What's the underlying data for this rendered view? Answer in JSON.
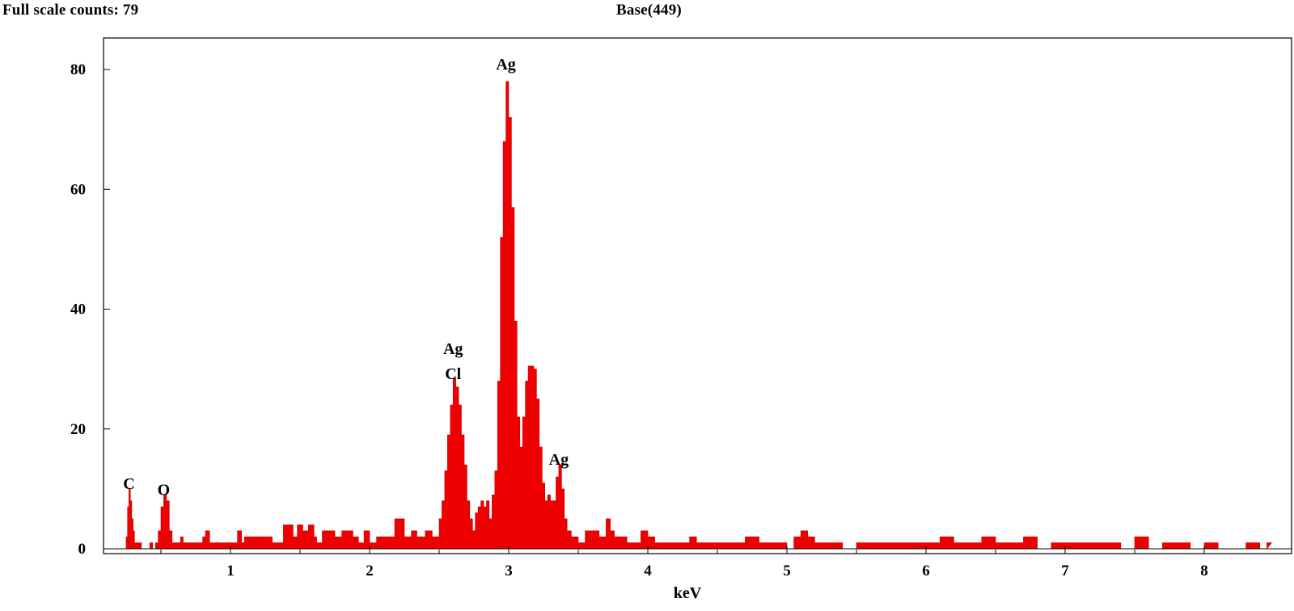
{
  "header": {
    "full_scale": "Full scale counts: 79",
    "base": "Base(449)"
  },
  "chart_data": {
    "type": "area",
    "title": "",
    "xlabel": "keV",
    "ylabel": "",
    "xlim": [
      0.0,
      8.45
    ],
    "ylim": [
      0,
      86
    ],
    "x_ticks": [
      1,
      2,
      3,
      4,
      5,
      6,
      7,
      8
    ],
    "y_ticks": [
      0,
      20,
      40,
      60,
      80
    ],
    "fill_color": "#ee0000",
    "grid": false,
    "peak_labels": [
      {
        "text": "C",
        "x": 0.27,
        "y": 10
      },
      {
        "text": "O",
        "x": 0.52,
        "y": 9
      },
      {
        "text": "Ag",
        "x": 2.6,
        "y": 32.5
      },
      {
        "text": "Cl",
        "x": 2.6,
        "y": 28.3
      },
      {
        "text": "Ag",
        "x": 2.98,
        "y": 80
      },
      {
        "text": "Ag",
        "x": 3.36,
        "y": 14
      }
    ],
    "series": [
      {
        "values": [
          [
            0.24,
            0
          ],
          [
            0.25,
            2
          ],
          [
            0.26,
            7
          ],
          [
            0.27,
            10
          ],
          [
            0.28,
            8
          ],
          [
            0.29,
            5
          ],
          [
            0.3,
            3
          ],
          [
            0.31,
            1
          ],
          [
            0.34,
            1
          ],
          [
            0.36,
            0
          ],
          [
            0.38,
            0
          ],
          [
            0.4,
            0
          ],
          [
            0.42,
            1
          ],
          [
            0.44,
            0
          ],
          [
            0.46,
            1
          ],
          [
            0.48,
            3
          ],
          [
            0.5,
            7
          ],
          [
            0.52,
            9
          ],
          [
            0.54,
            8
          ],
          [
            0.56,
            3
          ],
          [
            0.58,
            1
          ],
          [
            0.62,
            1
          ],
          [
            0.64,
            2
          ],
          [
            0.66,
            1
          ],
          [
            0.7,
            1
          ],
          [
            0.75,
            1
          ],
          [
            0.8,
            2
          ],
          [
            0.82,
            3
          ],
          [
            0.85,
            1
          ],
          [
            0.9,
            1
          ],
          [
            0.95,
            1
          ],
          [
            1.0,
            1
          ],
          [
            1.05,
            3
          ],
          [
            1.08,
            1
          ],
          [
            1.1,
            2
          ],
          [
            1.15,
            2
          ],
          [
            1.2,
            2
          ],
          [
            1.25,
            2
          ],
          [
            1.3,
            1
          ],
          [
            1.35,
            1
          ],
          [
            1.38,
            4
          ],
          [
            1.45,
            2
          ],
          [
            1.48,
            4
          ],
          [
            1.52,
            3
          ],
          [
            1.56,
            4
          ],
          [
            1.6,
            2
          ],
          [
            1.62,
            1
          ],
          [
            1.66,
            3
          ],
          [
            1.7,
            3
          ],
          [
            1.75,
            2
          ],
          [
            1.8,
            3
          ],
          [
            1.85,
            3
          ],
          [
            1.88,
            2
          ],
          [
            1.92,
            1
          ],
          [
            1.96,
            3
          ],
          [
            2.0,
            1
          ],
          [
            2.05,
            2
          ],
          [
            2.1,
            2
          ],
          [
            2.15,
            2
          ],
          [
            2.18,
            5
          ],
          [
            2.22,
            5
          ],
          [
            2.25,
            2
          ],
          [
            2.28,
            2
          ],
          [
            2.3,
            3
          ],
          [
            2.34,
            2
          ],
          [
            2.38,
            2
          ],
          [
            2.4,
            3
          ],
          [
            2.45,
            2
          ],
          [
            2.48,
            2
          ],
          [
            2.5,
            5
          ],
          [
            2.52,
            8
          ],
          [
            2.54,
            13
          ],
          [
            2.56,
            19
          ],
          [
            2.58,
            24
          ],
          [
            2.6,
            28.5
          ],
          [
            2.62,
            27
          ],
          [
            2.64,
            24
          ],
          [
            2.66,
            19
          ],
          [
            2.68,
            14
          ],
          [
            2.7,
            8
          ],
          [
            2.72,
            5
          ],
          [
            2.74,
            3
          ],
          [
            2.76,
            6
          ],
          [
            2.78,
            7
          ],
          [
            2.8,
            8
          ],
          [
            2.82,
            7
          ],
          [
            2.84,
            8
          ],
          [
            2.86,
            5
          ],
          [
            2.88,
            9
          ],
          [
            2.9,
            13
          ],
          [
            2.92,
            28
          ],
          [
            2.94,
            52
          ],
          [
            2.96,
            68
          ],
          [
            2.98,
            78
          ],
          [
            3.0,
            72
          ],
          [
            3.02,
            57
          ],
          [
            3.04,
            38
          ],
          [
            3.06,
            22
          ],
          [
            3.08,
            17
          ],
          [
            3.1,
            22
          ],
          [
            3.12,
            28
          ],
          [
            3.14,
            30.5
          ],
          [
            3.16,
            30.5
          ],
          [
            3.18,
            30
          ],
          [
            3.2,
            25
          ],
          [
            3.22,
            17
          ],
          [
            3.24,
            11
          ],
          [
            3.26,
            8
          ],
          [
            3.28,
            9
          ],
          [
            3.3,
            8
          ],
          [
            3.32,
            8
          ],
          [
            3.34,
            12
          ],
          [
            3.36,
            14
          ],
          [
            3.38,
            10
          ],
          [
            3.4,
            5
          ],
          [
            3.42,
            3
          ],
          [
            3.45,
            2
          ],
          [
            3.5,
            1
          ],
          [
            3.55,
            3
          ],
          [
            3.6,
            3
          ],
          [
            3.65,
            2
          ],
          [
            3.7,
            5
          ],
          [
            3.73,
            3
          ],
          [
            3.76,
            2
          ],
          [
            3.8,
            2
          ],
          [
            3.85,
            1
          ],
          [
            3.9,
            1
          ],
          [
            3.95,
            3
          ],
          [
            4.0,
            2
          ],
          [
            4.05,
            1
          ],
          [
            4.1,
            1
          ],
          [
            4.2,
            1
          ],
          [
            4.3,
            2
          ],
          [
            4.35,
            1
          ],
          [
            4.4,
            1
          ],
          [
            4.5,
            1
          ],
          [
            4.6,
            1
          ],
          [
            4.7,
            2
          ],
          [
            4.8,
            1
          ],
          [
            4.9,
            1
          ],
          [
            5.0,
            0
          ],
          [
            5.05,
            2
          ],
          [
            5.1,
            3
          ],
          [
            5.15,
            2
          ],
          [
            5.2,
            1
          ],
          [
            5.3,
            1
          ],
          [
            5.4,
            0
          ],
          [
            5.5,
            1
          ],
          [
            5.6,
            1
          ],
          [
            5.7,
            1
          ],
          [
            5.8,
            1
          ],
          [
            5.9,
            1
          ],
          [
            6.0,
            1
          ],
          [
            6.1,
            2
          ],
          [
            6.2,
            1
          ],
          [
            6.3,
            1
          ],
          [
            6.4,
            2
          ],
          [
            6.5,
            1
          ],
          [
            6.6,
            1
          ],
          [
            6.7,
            2
          ],
          [
            6.8,
            0
          ],
          [
            6.9,
            1
          ],
          [
            7.0,
            1
          ],
          [
            7.1,
            1
          ],
          [
            7.2,
            1
          ],
          [
            7.3,
            1
          ],
          [
            7.4,
            0
          ],
          [
            7.5,
            2
          ],
          [
            7.6,
            0
          ],
          [
            7.7,
            1
          ],
          [
            7.8,
            1
          ],
          [
            7.9,
            0
          ],
          [
            8.0,
            1
          ],
          [
            8.1,
            0
          ],
          [
            8.2,
            0
          ],
          [
            8.3,
            1
          ],
          [
            8.4,
            0
          ],
          [
            8.45,
            1
          ]
        ]
      }
    ]
  }
}
